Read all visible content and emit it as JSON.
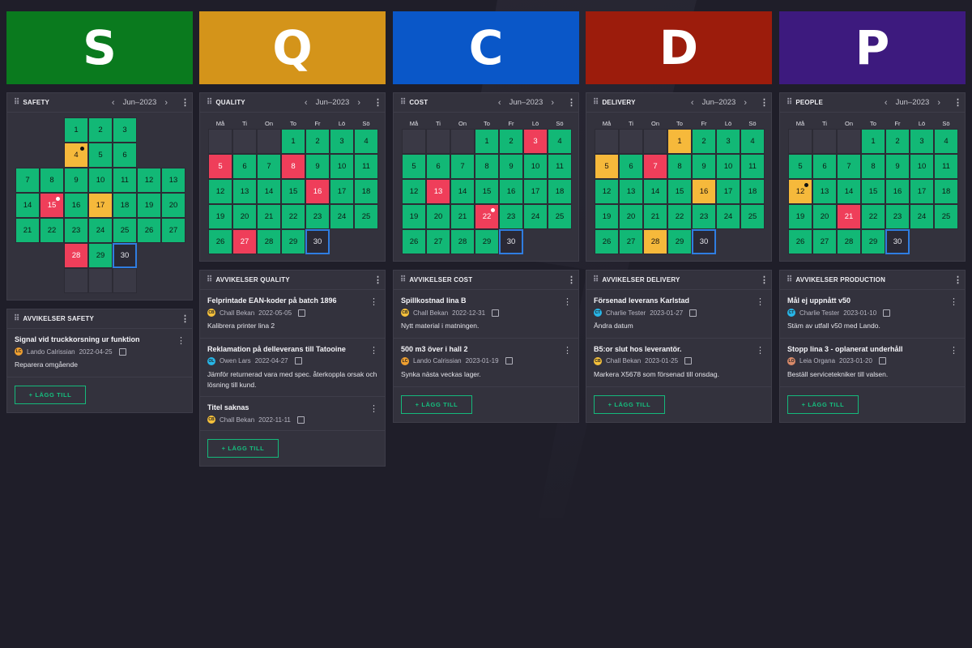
{
  "columns": [
    {
      "letter": "S",
      "color": "#0a7a1e",
      "title": "SAFETY",
      "month": "Jun–2023",
      "dev_title": "AVVIKELSER SAFETY",
      "deviations": [
        {
          "title": "Signal vid truckkorsning ur funktion",
          "initials": "LC",
          "avatar": "#f0a030",
          "user": "Lando Calrissian",
          "date": "2022-04-25",
          "desc": "Reparera omgående"
        }
      ]
    },
    {
      "letter": "Q",
      "color": "#d4941a",
      "title": "QUALITY",
      "month": "Jun–2023",
      "dev_title": "AVVIKELSER QUALITY",
      "deviations": [
        {
          "title": "Felprintade EAN-koder på batch 1896",
          "initials": "CB",
          "avatar": "#f6c13b",
          "user": "Chall Bekan",
          "date": "2022-05-05",
          "desc": "Kalibrera printer lina 2"
        },
        {
          "title": "Reklamation på delleverans till Tatooine",
          "initials": "OL",
          "avatar": "#27b6e8",
          "user": "Owen Lars",
          "date": "2022-04-27",
          "desc": "Jämför returnerad vara med spec. återkoppla orsak och lösning till kund."
        },
        {
          "title": "Titel saknas",
          "initials": "CB",
          "avatar": "#f6c13b",
          "user": "Chall Bekan",
          "date": "2022-11-11",
          "desc": ""
        }
      ]
    },
    {
      "letter": "C",
      "color": "#0a57c8",
      "title": "COST",
      "month": "Jun–2023",
      "dev_title": "AVVIKELSER COST",
      "deviations": [
        {
          "title": "Spillkostnad lina B",
          "initials": "CB",
          "avatar": "#f6c13b",
          "user": "Chall Bekan",
          "date": "2022-12-31",
          "desc": "Nytt material i matningen."
        },
        {
          "title": "500 m3 över i hall 2",
          "initials": "LC",
          "avatar": "#f0a030",
          "user": "Lando Calrissian",
          "date": "2023-01-19",
          "desc": "Synka nästa veckas lager."
        }
      ]
    },
    {
      "letter": "D",
      "color": "#9c1c0c",
      "title": "DELIVERY",
      "month": "Jun–2023",
      "dev_title": "AVVIKELSER DELIVERY",
      "deviations": [
        {
          "title": "Försenad leverans Karlstad",
          "initials": "CT",
          "avatar": "#27b6e8",
          "user": "Charlie Tester",
          "date": "2023-01-27",
          "desc": "Ändra datum"
        },
        {
          "title": "B5:or slut hos leverantör.",
          "initials": "CB",
          "avatar": "#f6c13b",
          "user": "Chall Bekan",
          "date": "2023-01-25",
          "desc": "Markera X5678 som försenad till onsdag."
        }
      ]
    },
    {
      "letter": "P",
      "color": "#3d1a7e",
      "title": "PEOPLE",
      "month": "Jun–2023",
      "dev_title": "AVVIKELSER PRODUCTION",
      "deviations": [
        {
          "title": "Mål ej uppnått v50",
          "initials": "CT",
          "avatar": "#27b6e8",
          "user": "Charlie Tester",
          "date": "2023-01-10",
          "desc": "Stäm av utfall v50 med Lando."
        },
        {
          "title": "Stopp lina 3 - oplanerat underhåll",
          "initials": "LO",
          "avatar": "#d98a6a",
          "user": "Leia Organa",
          "date": "2023-01-20",
          "desc": "Beställ servicetekniker till valsen."
        }
      ]
    }
  ],
  "weekdays": [
    "Må",
    "Ti",
    "On",
    "To",
    "Fr",
    "Lö",
    "Sö"
  ],
  "add_label": "+ LÄGG TILL",
  "status": {
    "quality": {
      "red": [
        5,
        8,
        16,
        27
      ],
      "yellow": [],
      "dots": []
    },
    "cost": {
      "red": [
        3,
        13,
        22
      ],
      "yellow": [],
      "dots": [
        22
      ]
    },
    "delivery": {
      "red": [
        7
      ],
      "yellow": [
        1,
        5,
        16,
        28
      ],
      "dots": []
    },
    "people": {
      "red": [
        21
      ],
      "yellow": [
        12
      ],
      "dots": [
        12
      ]
    },
    "safety": {
      "red": [
        15,
        28
      ],
      "yellow": [
        4,
        17
      ],
      "dots": [
        4,
        15
      ]
    }
  }
}
